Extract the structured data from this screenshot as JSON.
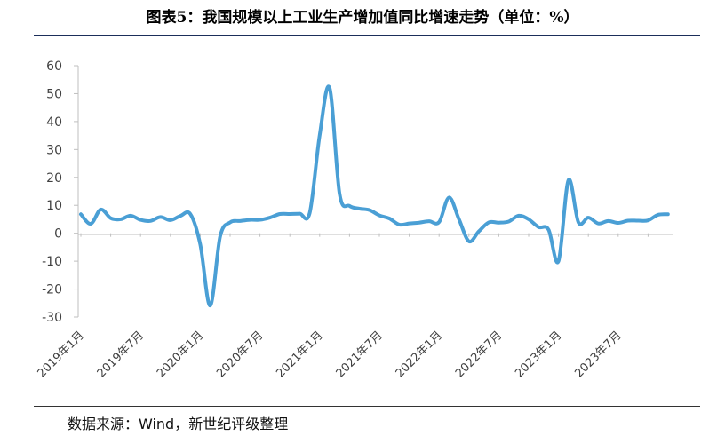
{
  "title": "图表5：我国规模以上工业生产增加值同比增速走势（单位：%）",
  "source": "数据来源：Wind，新世纪评级整理",
  "chart_data": {
    "type": "line",
    "title": "图表5：我国规模以上工业生产增加值同比增速走势（单位：%）",
    "xlabel": "",
    "ylabel": "",
    "ylim": [
      -30,
      60
    ],
    "yticks": [
      "60",
      "50",
      "40",
      "30",
      "20",
      "10",
      "0",
      "-10",
      "-20",
      "-30"
    ],
    "xtick_labels": [
      "2019年1月",
      "2019年7月",
      "2020年1月",
      "2020年7月",
      "2021年1月",
      "2021年7月",
      "2022年1月",
      "2022年7月",
      "2023年1月",
      "2023年7月"
    ],
    "grid": false,
    "legend": "none",
    "line_color": "#4a9fd5",
    "x": [
      "2019-01",
      "2019-02",
      "2019-03",
      "2019-04",
      "2019-05",
      "2019-06",
      "2019-07",
      "2019-08",
      "2019-09",
      "2019-10",
      "2019-11",
      "2019-12",
      "2020-01",
      "2020-02",
      "2020-03",
      "2020-04",
      "2020-05",
      "2020-06",
      "2020-07",
      "2020-08",
      "2020-09",
      "2020-10",
      "2020-11",
      "2020-12",
      "2021-01",
      "2021-02",
      "2021-03",
      "2021-04",
      "2021-05",
      "2021-06",
      "2021-07",
      "2021-08",
      "2021-09",
      "2021-10",
      "2021-11",
      "2021-12",
      "2022-01",
      "2022-02",
      "2022-03",
      "2022-04",
      "2022-05",
      "2022-06",
      "2022-07",
      "2022-08",
      "2022-09",
      "2022-10",
      "2022-11",
      "2022-12",
      "2023-01",
      "2023-02",
      "2023-03",
      "2023-04",
      "2023-05",
      "2023-06",
      "2023-07",
      "2023-08",
      "2023-09",
      "2023-10",
      "2023-11",
      "2023-12"
    ],
    "series": [
      {
        "values": [
          6.8,
          3.4,
          8.5,
          5.4,
          5.0,
          6.3,
          4.8,
          4.4,
          5.8,
          4.7,
          6.2,
          6.9,
          -4.0,
          -25.9,
          -1.1,
          3.9,
          4.4,
          4.8,
          4.8,
          5.6,
          6.9,
          6.9,
          7.0,
          7.3,
          35.1,
          52.0,
          14.1,
          9.8,
          8.8,
          8.3,
          6.4,
          5.3,
          3.1,
          3.5,
          3.8,
          4.3,
          4.0,
          12.8,
          5.0,
          -2.9,
          0.7,
          3.9,
          3.8,
          4.2,
          6.3,
          5.0,
          2.2,
          1.3,
          -10.0,
          19.0,
          3.9,
          5.6,
          3.5,
          4.4,
          3.7,
          4.5,
          4.5,
          4.6,
          6.6,
          6.8
        ]
      }
    ]
  }
}
